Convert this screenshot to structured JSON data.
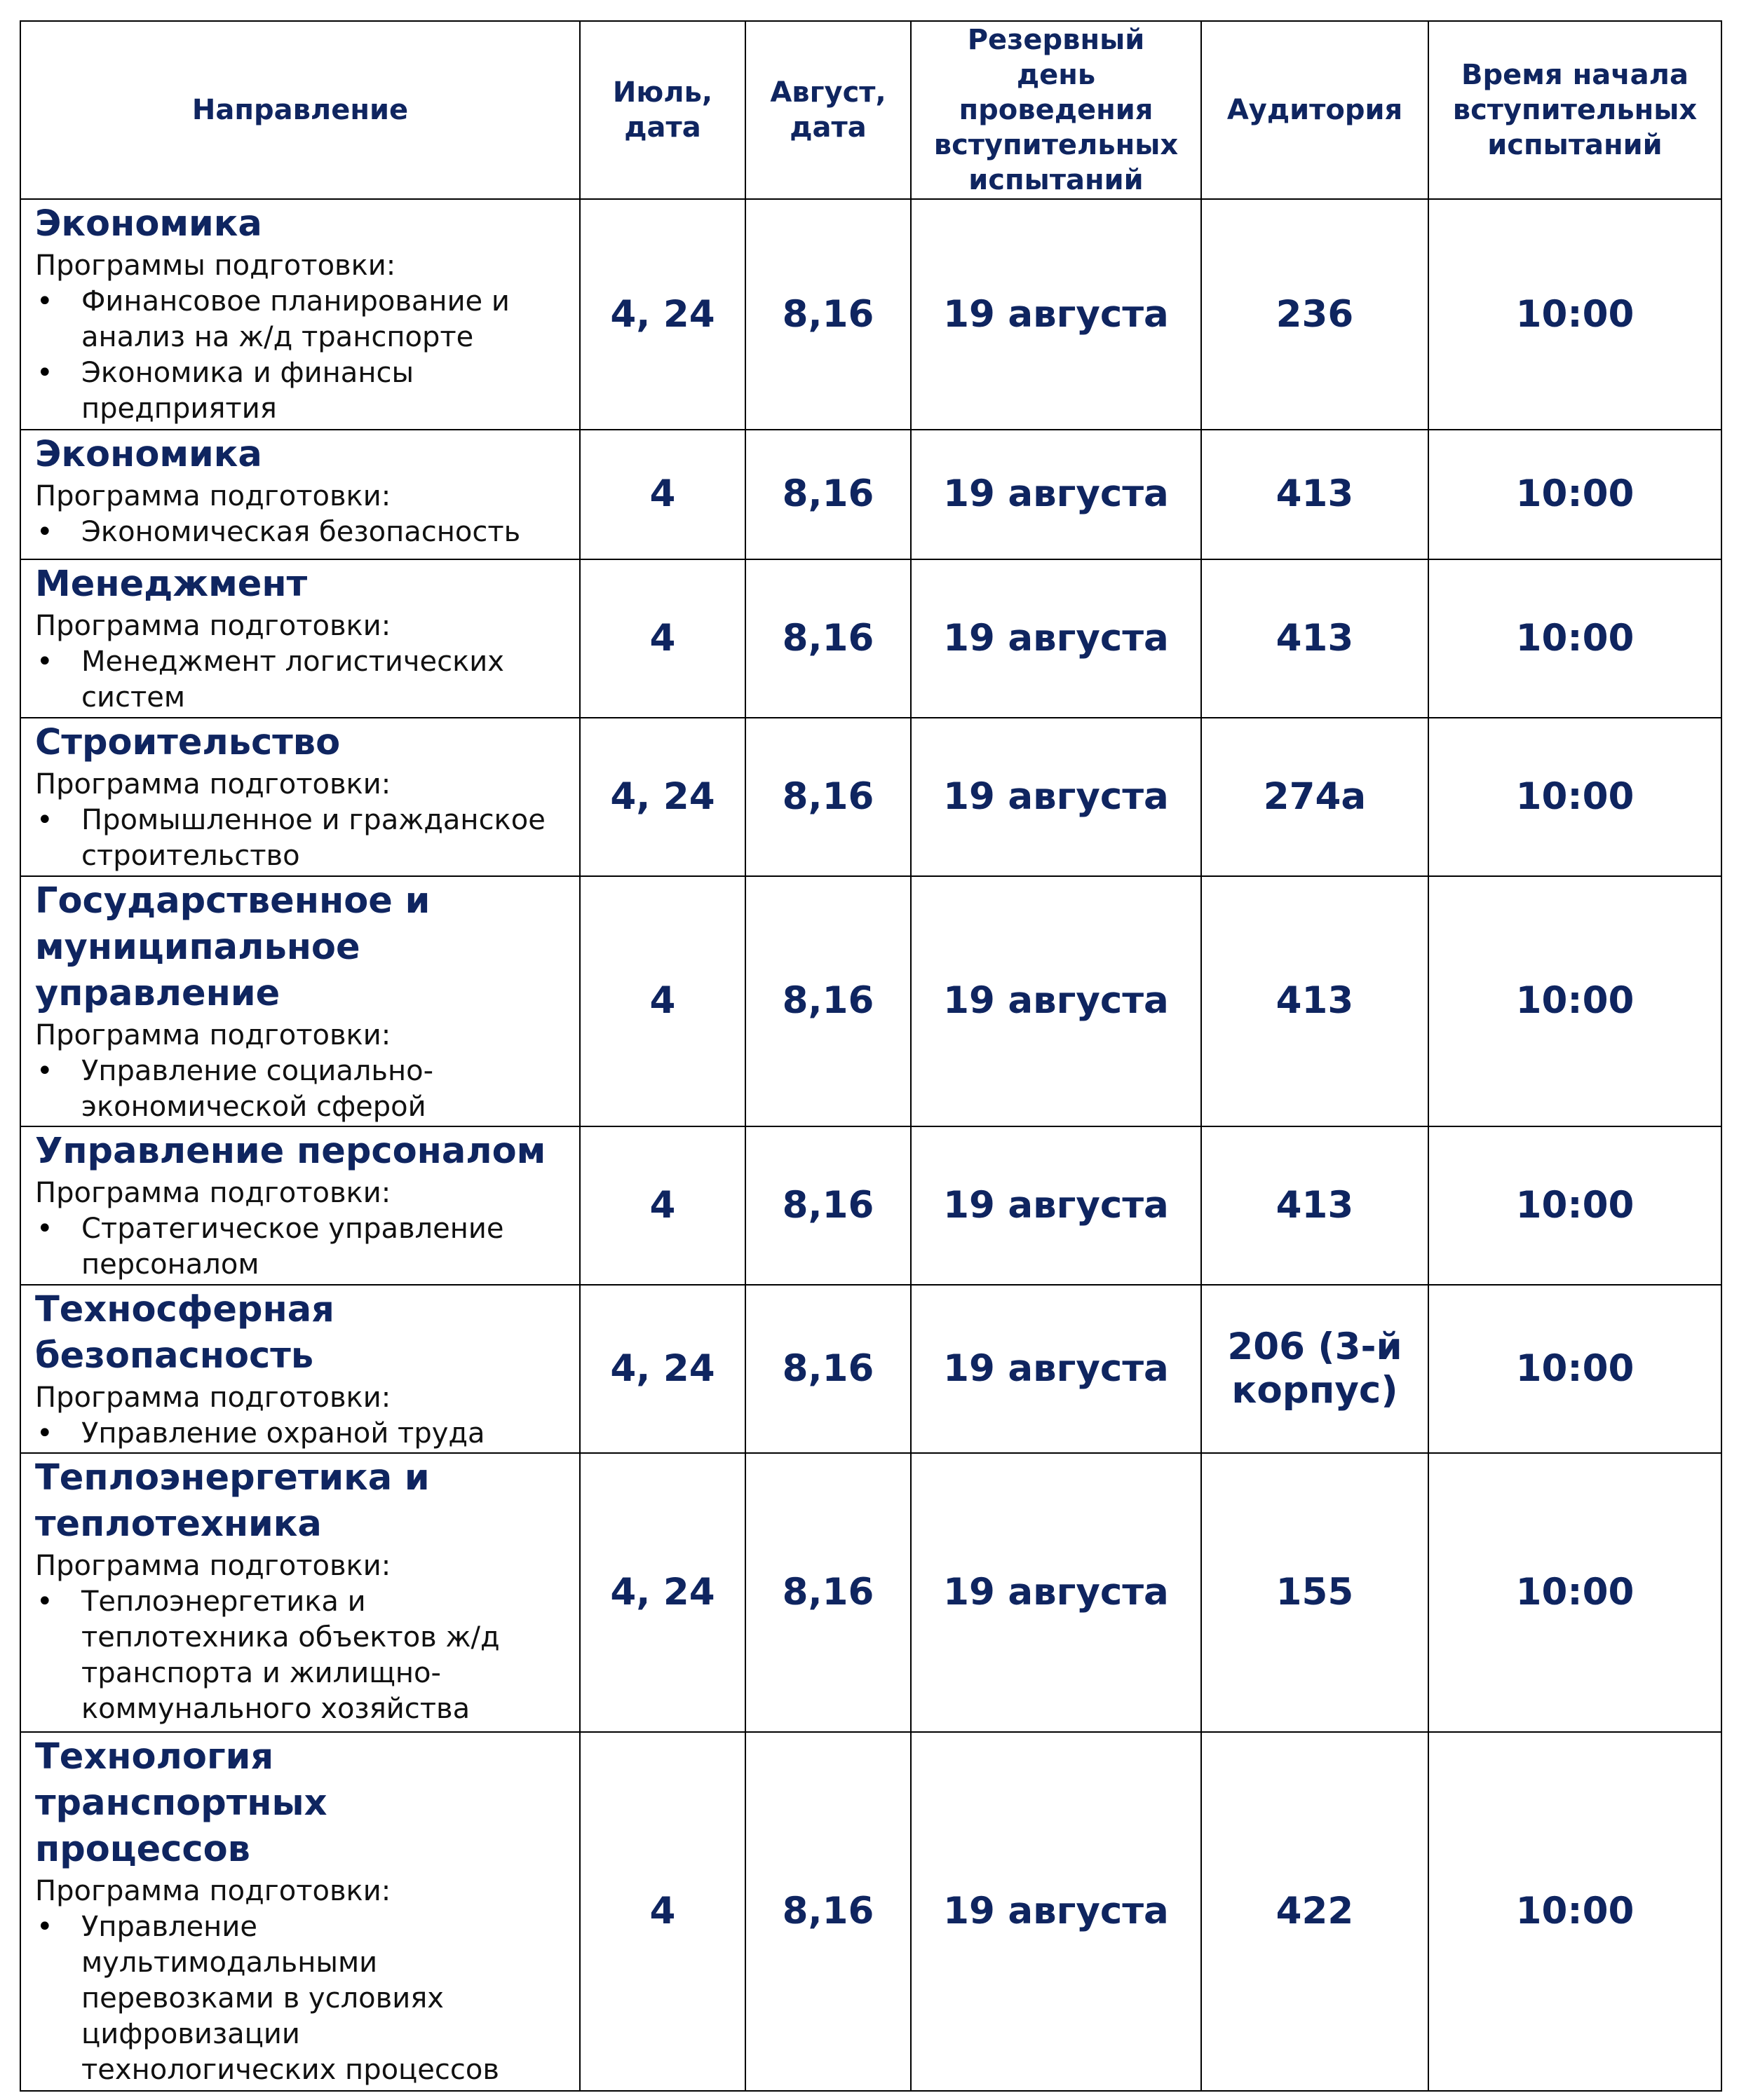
{
  "header": {
    "direction": "Направление",
    "july": "Июль, дата",
    "august": "Август, дата",
    "reserve": "Резервный день проведения вступительных испытаний",
    "room": "Аудитория",
    "start_time": "Время начала вступительных испытаний"
  },
  "rows": [
    {
      "title": "Экономика",
      "program_label": "Программы подготовки:",
      "programs": [
        "Финансовое планирование и анализ на ж/д транспорте",
        "Экономика и финансы предприятия"
      ],
      "july": "4, 24",
      "august": "8,16",
      "reserve": "19 августа",
      "room": "236",
      "time": "10:00"
    },
    {
      "title": "Экономика",
      "program_label": "Программа подготовки:",
      "programs": [
        "Экономическая безопасность"
      ],
      "july": "4",
      "august": "8,16",
      "reserve": "19 августа",
      "room": "413",
      "time": "10:00"
    },
    {
      "title": "Менеджмент",
      "program_label": "Программа подготовки:",
      "programs": [
        "Менеджмент логистических систем"
      ],
      "july": "4",
      "august": "8,16",
      "reserve": "19 августа",
      "room": "413",
      "time": "10:00"
    },
    {
      "title": "Строительство",
      "program_label": "Программа подготовки:",
      "programs": [
        "Промышленное и гражданское строительство"
      ],
      "july": "4, 24",
      "august": "8,16",
      "reserve": "19 августа",
      "room": "274а",
      "time": "10:00"
    },
    {
      "title": "Государственное и муниципальное управление",
      "program_label": "Программа подготовки:",
      "programs": [
        "Управление социально-экономической сферой"
      ],
      "july": "4",
      "august": "8,16",
      "reserve": "19 августа",
      "room": "413",
      "time": "10:00"
    },
    {
      "title": "Управление персоналом",
      "program_label": "Программа подготовки:",
      "programs": [
        "Стратегическое управление персоналом"
      ],
      "july": "4",
      "august": "8,16",
      "reserve": "19 августа",
      "room": "413",
      "time": "10:00"
    },
    {
      "title": "Техносферная безопасность",
      "program_label": "Программа подготовки:",
      "programs": [
        "Управление охраной труда"
      ],
      "july": "4, 24",
      "august": "8,16",
      "reserve": "19 августа",
      "room": "206 (3-й корпус)",
      "time": "10:00"
    },
    {
      "title": "Теплоэнергетика и теплотехника",
      "program_label": "Программа подготовки:",
      "programs": [
        "Теплоэнергетика и теплотехника объектов ж/д транспорта и жилищно-коммунального хозяйства"
      ],
      "july": "4, 24",
      "august": "8,16",
      "reserve": "19 августа",
      "room": "155",
      "time": "10:00"
    },
    {
      "title": "Технология транспортных процессов",
      "program_label": "Программа подготовки:",
      "programs": [
        "Управление мультимодальными перевозками в условиях цифровизации технологических процессов"
      ],
      "july": "4",
      "august": "8,16",
      "reserve": "19 августа",
      "room": "422",
      "time": "10:00"
    }
  ]
}
